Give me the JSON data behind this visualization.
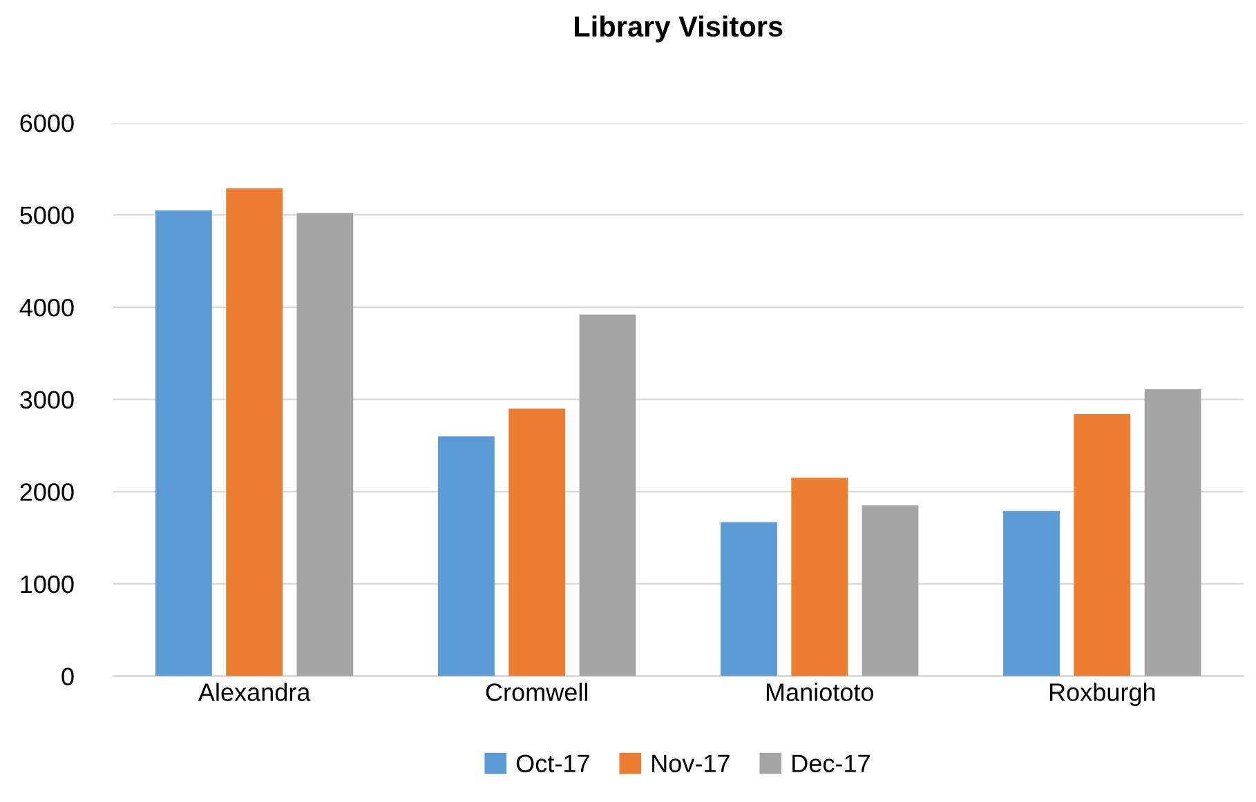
{
  "chart_data": {
    "type": "bar",
    "title": "Library Visitors",
    "categories": [
      "Alexandra",
      "Cromwell",
      "Maniototo",
      "Roxburgh"
    ],
    "series": [
      {
        "name": "Oct-17",
        "color": "#5b9bd5",
        "values": [
          5050,
          2600,
          1670,
          1790
        ]
      },
      {
        "name": "Nov-17",
        "color": "#ed7d31",
        "values": [
          5290,
          2900,
          2150,
          2840
        ]
      },
      {
        "name": "Dec-17",
        "color": "#a5a5a5",
        "values": [
          5020,
          3920,
          1850,
          3110
        ]
      }
    ],
    "ylim": [
      0,
      6000
    ],
    "yticks": [
      0,
      1000,
      2000,
      3000,
      4000,
      5000,
      6000
    ],
    "grid": "y",
    "legend": "bottom"
  }
}
